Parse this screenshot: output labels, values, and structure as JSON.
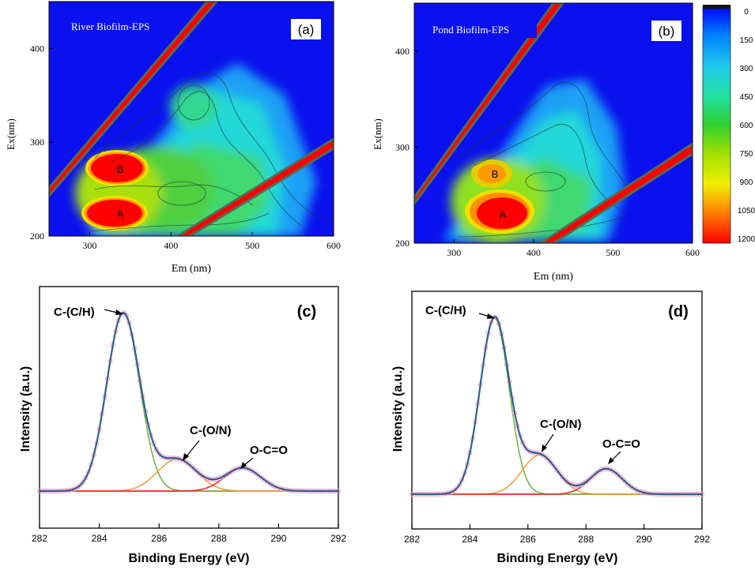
{
  "chart_data": [
    {
      "panel": "(a)",
      "type": "heatmap",
      "title": "River Biofilm-EPS",
      "xlabel": "Em (nm)",
      "ylabel": "Ex(nm)",
      "xlim": [
        250,
        600
      ],
      "ylim": [
        200,
        450
      ],
      "xticks": [
        300,
        400,
        500,
        600
      ],
      "yticks": [
        200,
        300,
        400
      ],
      "peaks": [
        {
          "label": "A",
          "em": 340,
          "ex": 228,
          "intensity": 1200
        },
        {
          "label": "B",
          "em": 335,
          "ex": 275,
          "intensity": 1200
        }
      ]
    },
    {
      "panel": "(b)",
      "type": "heatmap",
      "title": "Pond Biofilm-EPS",
      "xlabel": "Em (nm)",
      "ylabel": "Ex(nm)",
      "xlim": [
        250,
        600
      ],
      "ylim": [
        200,
        450
      ],
      "xticks": [
        300,
        400,
        500,
        600
      ],
      "yticks": [
        200,
        300,
        400
      ],
      "peaks": [
        {
          "label": "A",
          "em": 360,
          "ex": 232,
          "intensity": 1200
        },
        {
          "label": "B",
          "em": 345,
          "ex": 278,
          "intensity": 950
        }
      ]
    },
    {
      "panel": "(c)",
      "type": "line",
      "xlabel": "Binding Energy (eV)",
      "ylabel": "Intensity (a.u.)",
      "xlim": [
        282,
        292
      ],
      "ylim": [
        0,
        1
      ],
      "xticks": [
        282,
        284,
        286,
        288,
        290,
        292
      ],
      "peaks": [
        {
          "name": "C-(C/H)",
          "center": 284.8,
          "height": 0.92,
          "width": 0.55
        },
        {
          "name": "C-(O/N)",
          "center": 286.6,
          "height": 0.165,
          "width": 0.65
        },
        {
          "name": "O-C=O",
          "center": 288.8,
          "height": 0.12,
          "width": 0.6
        }
      ],
      "baseline": 0.03
    },
    {
      "panel": "(d)",
      "type": "line",
      "xlabel": "Binding Energy (eV)",
      "ylabel": "Intensity (a.u.)",
      "xlim": [
        282,
        292
      ],
      "ylim": [
        0,
        1
      ],
      "xticks": [
        282,
        284,
        286,
        288,
        290,
        292
      ],
      "peaks": [
        {
          "name": "C-(C/H)",
          "center": 284.85,
          "height": 0.9,
          "width": 0.5
        },
        {
          "name": "C-(O/N)",
          "center": 286.4,
          "height": 0.2,
          "width": 0.6
        },
        {
          "name": "O-C=O",
          "center": 288.7,
          "height": 0.13,
          "width": 0.55
        }
      ],
      "baseline": 0.03
    }
  ],
  "colorbar": {
    "ticks": [
      "0",
      "150",
      "300",
      "450",
      "600",
      "750",
      "900",
      "1050",
      "1200"
    ]
  },
  "colors": {
    "cmap": [
      "#0000ff",
      "#008cff",
      "#20d0f0",
      "#20e090",
      "#30d030",
      "#a0e000",
      "#f0f000",
      "#ff8000",
      "#ff0000"
    ],
    "envelope": "#2f5f8f",
    "raw": "#f6a0c8",
    "green": "#6ab23a",
    "orange": "#f09a3a",
    "red": "#e8241e",
    "baseline": "#ff3b3b"
  }
}
